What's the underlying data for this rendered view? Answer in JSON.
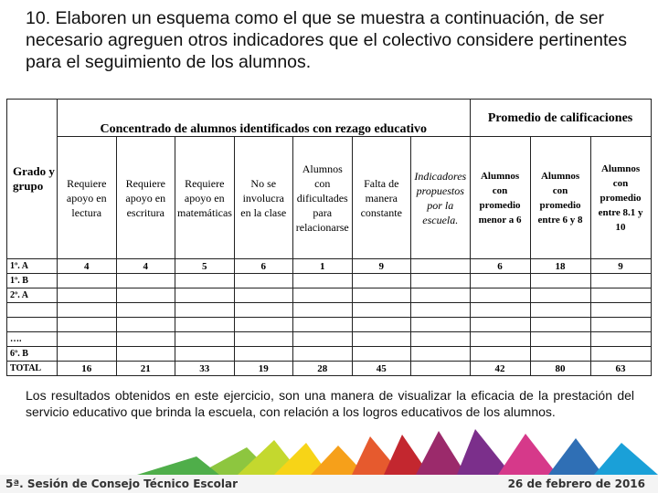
{
  "instruction": "10. Elaboren un esquema como el que se muestra a continuación, de ser necesario agreguen otros indicadores que el colectivo considere pertinentes para el seguimiento de los alumnos.",
  "table": {
    "row_header": "Grado y grupo",
    "groups": [
      "Concentrado de alumnos identificados con rezago educativo",
      "Promedio de calificaciones"
    ],
    "columns": [
      "Requiere apoyo en lectura",
      "Requiere apoyo en escritura",
      "Requiere apoyo en matemáticas",
      "No se involucra en la clase",
      "Alumnos con dificultades para relacionarse",
      "Falta de manera constante",
      "Indicadores propuestos por la escuela.",
      "Alumnos con promedio menor a 6",
      "Alumnos con promedio entre 6 y 8",
      "Alumnos con promedio entre 8.1 y 10"
    ],
    "rows": [
      {
        "label": "1º. A",
        "cells": [
          4,
          4,
          5,
          6,
          1,
          9,
          null,
          6,
          18,
          9
        ]
      },
      {
        "label": "1º. B",
        "cells": [
          null,
          null,
          null,
          null,
          null,
          null,
          null,
          null,
          null,
          null
        ]
      },
      {
        "label": "2º. A",
        "cells": [
          null,
          null,
          null,
          null,
          null,
          null,
          null,
          null,
          null,
          null
        ]
      },
      {
        "label": null,
        "cells": [
          null,
          null,
          null,
          null,
          null,
          null,
          null,
          null,
          null,
          null
        ]
      },
      {
        "label": null,
        "cells": [
          null,
          null,
          null,
          null,
          null,
          null,
          null,
          null,
          null,
          null
        ]
      },
      {
        "label": "….",
        "cells": [
          null,
          null,
          null,
          null,
          null,
          null,
          null,
          null,
          null,
          null
        ]
      },
      {
        "label": "6º. B",
        "cells": [
          null,
          null,
          null,
          null,
          null,
          null,
          null,
          null,
          null,
          null
        ]
      },
      {
        "label": "TOTAL",
        "cells": [
          16,
          21,
          33,
          19,
          28,
          45,
          null,
          42,
          80,
          63
        ]
      }
    ]
  },
  "note": "Los resultados obtenidos en este ejercicio, son una manera de visualizar la eficacia de la prestación del servicio educativo que brinda la escuela, con relación a los logros educativos de los alumnos.",
  "footer": {
    "left": "5ª. Sesión de Consejo Técnico Escolar",
    "right": "26 de febrero de 2016"
  }
}
